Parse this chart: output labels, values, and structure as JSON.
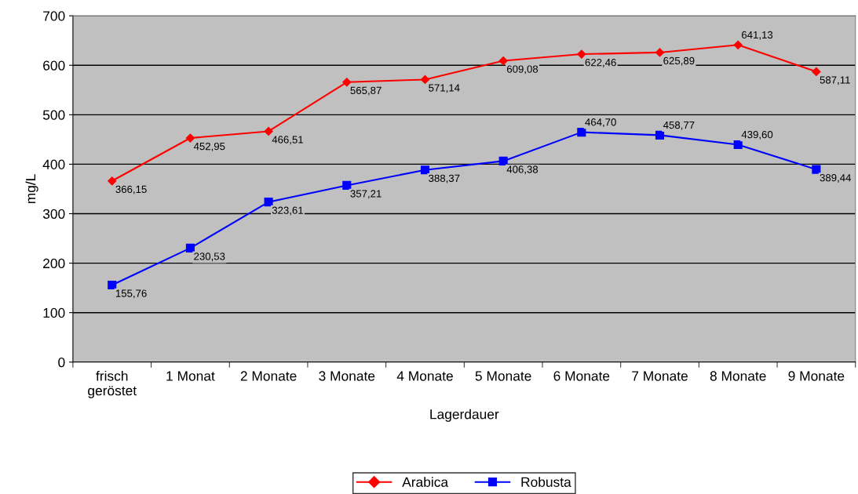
{
  "chart_data": {
    "type": "line",
    "xlabel": "Lagerdauer",
    "ylabel": "mg/L",
    "categories": [
      "frisch\ngeröstet",
      "1 Monat",
      "2 Monate",
      "3 Monate",
      "4 Monate",
      "5 Monate",
      "6 Monate",
      "7 Monate",
      "8 Monate",
      "9 Monate"
    ],
    "series": [
      {
        "name": "Arabica",
        "color": "#ff0000",
        "marker": "diamond",
        "values": [
          366.15,
          452.95,
          466.51,
          565.87,
          571.14,
          609.08,
          622.46,
          625.89,
          641.13,
          587.11
        ],
        "value_labels": [
          "366,15",
          "452,95",
          "466,51",
          "565,87",
          "571,14",
          "609,08",
          "622,46",
          "625,89",
          "641,13",
          "587,11"
        ]
      },
      {
        "name": "Robusta",
        "color": "#0000ff",
        "marker": "square",
        "values": [
          155.76,
          230.53,
          323.61,
          357.21,
          388.37,
          406.38,
          464.7,
          458.77,
          439.6,
          389.44
        ],
        "value_labels": [
          "155,76",
          "230,53",
          "323,61",
          "357,21",
          "388,37",
          "406,38",
          "464,70",
          "458,77",
          "439,60",
          "389,44"
        ]
      }
    ],
    "ylim": [
      0,
      700
    ],
    "yticks": [
      0,
      100,
      200,
      300,
      400,
      500,
      600,
      700
    ],
    "grid": "y",
    "legend": "bottom",
    "line_style": "solid"
  }
}
